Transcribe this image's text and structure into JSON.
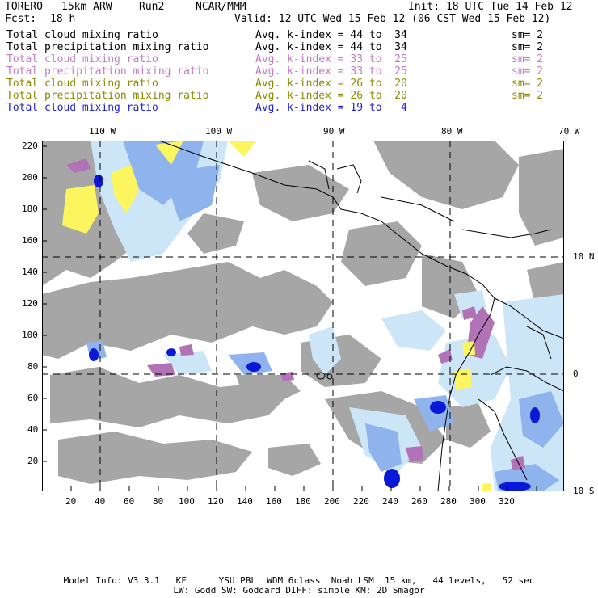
{
  "header": {
    "model": "TORERO",
    "resolution": "15km ARW",
    "run": "Run2",
    "org": "NCAR/MMM",
    "init": "Init: 18 UTC Tue 14 Feb 12",
    "fcst_label": "Fcst:",
    "fcst_value": "18 h",
    "valid": "Valid: 12 UTC Wed 15 Feb 12 (06 CST Wed 15 Feb 12)"
  },
  "legend": [
    {
      "field": "Total cloud mixing ratio",
      "kindex": "Avg. k-index = 44 to  34",
      "sm": "sm= 2",
      "color": "#000000"
    },
    {
      "field": "Total precipitation mixing ratio",
      "kindex": "Avg. k-index = 44 to  34",
      "sm": "sm= 2",
      "color": "#000000"
    },
    {
      "field": "Total cloud mixing ratio",
      "kindex": "Avg. k-index = 33 to  25",
      "sm": "sm= 2",
      "color": "#c47ac0"
    },
    {
      "field": "Total precipitation mixing ratio",
      "kindex": "Avg. k-index = 33 to  25",
      "sm": "sm= 2",
      "color": "#c47ac0"
    },
    {
      "field": "Total cloud mixing ratio",
      "kindex": "Avg. k-index = 26 to  20",
      "sm": "sm= 2",
      "color": "#8b8b00"
    },
    {
      "field": "Total precipitation mixing ratio",
      "kindex": "Avg. k-index = 26 to  20",
      "sm": "sm= 2",
      "color": "#8b8b00"
    },
    {
      "field": "Total cloud mixing ratio",
      "kindex": "Avg. k-index = 19 to   4",
      "sm": "",
      "color": "#1f1fd6"
    }
  ],
  "axes": {
    "lon_labels": [
      "110 W",
      "100 W",
      "90 W",
      "80 W",
      "70 W"
    ],
    "lat_labels": [
      "10 N",
      "0",
      "10 S"
    ],
    "x_ticks": [
      "20",
      "40",
      "60",
      "80",
      "100",
      "120",
      "140",
      "160",
      "180",
      "200",
      "220",
      "240",
      "260",
      "280",
      "300",
      "320"
    ],
    "y_ticks": [
      "220",
      "200",
      "180",
      "160",
      "140",
      "120",
      "100",
      "80",
      "60",
      "40",
      "20"
    ]
  },
  "footer": {
    "line1": "Model Info: V3.3.1   KF      YSU PBL  WDM 6class  Noah LSM  15 km,   44 levels,   52 sec",
    "line2": "LW: Godd SW: Goddard DIFF: simple KM: 2D Smagor"
  },
  "colors": {
    "cloud_gray": "#a6a6a6",
    "light_blue": "#cde6f7",
    "mid_blue": "#8fb3ec",
    "deep_blue": "#0a18d8",
    "purple": "#b173b6",
    "yellow": "#fbf55f",
    "coast": "#000000"
  }
}
